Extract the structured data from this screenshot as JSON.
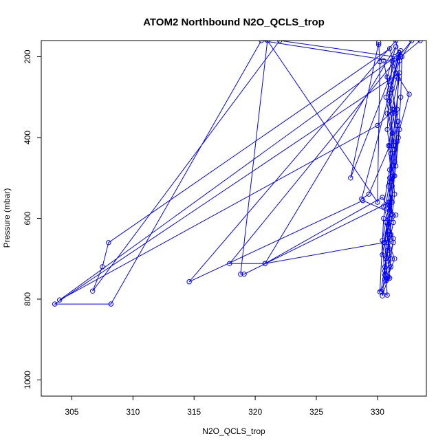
{
  "chart_data": {
    "type": "line",
    "title": "ATOM2 Northbound N2O_QCLS_trop",
    "xlabel": "N2O_QCLS_trop",
    "ylabel": "Pressure (mbar)",
    "xlim": [
      302.5,
      334
    ],
    "ylim": [
      1040,
      160
    ],
    "y_reversed": true,
    "x_ticks": [
      305,
      310,
      315,
      320,
      325,
      330
    ],
    "y_ticks": [
      200,
      400,
      600,
      800,
      1000
    ],
    "grid": false,
    "color": "#0000ff",
    "series": [
      {
        "points": [
          [
            330.5,
            210
          ],
          [
            331.0,
            290
          ],
          [
            330.8,
            380
          ],
          [
            331.2,
            470
          ],
          [
            330.9,
            560
          ],
          [
            331.1,
            640
          ],
          [
            330.6,
            720
          ],
          [
            330.8,
            790
          ],
          [
            330.3,
            780
          ],
          [
            330.7,
            700
          ],
          [
            331.3,
            610
          ],
          [
            330.9,
            520
          ],
          [
            331.4,
            430
          ],
          [
            330.8,
            340
          ],
          [
            331.6,
            250
          ],
          [
            331.0,
            180
          ],
          [
            308.0,
            660
          ],
          [
            307.5,
            720
          ],
          [
            306.7,
            780
          ],
          [
            322.0,
            160
          ],
          [
            331.4,
            200
          ],
          [
            330.7,
            300
          ],
          [
            331.2,
            390
          ],
          [
            331.0,
            480
          ],
          [
            330.5,
            570
          ],
          [
            331.3,
            650
          ],
          [
            330.9,
            745
          ],
          [
            330.4,
            792
          ],
          [
            330.6,
            730
          ],
          [
            331.0,
            640
          ],
          [
            331.4,
            540
          ],
          [
            331.1,
            440
          ],
          [
            331.5,
            340
          ],
          [
            331.8,
            240
          ],
          [
            303.6,
            812
          ],
          [
            308.2,
            812
          ],
          [
            320.5,
            160
          ],
          [
            331.2,
            210
          ],
          [
            331.0,
            310
          ],
          [
            331.3,
            410
          ],
          [
            331.0,
            500
          ],
          [
            331.2,
            590
          ],
          [
            330.8,
            680
          ],
          [
            331.0,
            748
          ],
          [
            330.8,
            750
          ],
          [
            330.6,
            660
          ],
          [
            331.0,
            570
          ],
          [
            331.3,
            470
          ],
          [
            331.6,
            370
          ],
          [
            331.2,
            280
          ],
          [
            331.7,
            195
          ],
          [
            304.0,
            802
          ],
          [
            330.0,
            370
          ],
          [
            331.4,
            330
          ],
          [
            330.9,
            420
          ],
          [
            331.2,
            520
          ],
          [
            330.7,
            610
          ],
          [
            331.1,
            700
          ],
          [
            330.6,
            740
          ],
          [
            330.8,
            650
          ],
          [
            331.2,
            560
          ],
          [
            331.4,
            460
          ],
          [
            331.7,
            360
          ],
          [
            331.1,
            270
          ],
          [
            331.8,
            190
          ],
          [
            327.8,
            500
          ],
          [
            330.1,
            165
          ],
          [
            330.1,
            170
          ],
          [
            330.2,
            212
          ],
          [
            330.0,
            560
          ],
          [
            321.0,
            160
          ],
          [
            318.8,
            738
          ],
          [
            319.1,
            738
          ],
          [
            331.0,
            560
          ],
          [
            330.8,
            640
          ],
          [
            331.1,
            720
          ],
          [
            330.6,
            750
          ],
          [
            330.4,
            655
          ],
          [
            330.9,
            575
          ],
          [
            331.3,
            495
          ],
          [
            331.6,
            410
          ],
          [
            331.2,
            330
          ],
          [
            331.7,
            255
          ],
          [
            331.9,
            185
          ],
          [
            328.7,
            552
          ],
          [
            329.3,
            540
          ],
          [
            331.0,
            420
          ],
          [
            331.2,
            340
          ],
          [
            330.8,
            250
          ],
          [
            331.5,
            175
          ],
          [
            320.8,
            712
          ],
          [
            330.4,
            548
          ],
          [
            331.2,
            590
          ],
          [
            330.9,
            660
          ],
          [
            331.4,
            700
          ],
          [
            330.7,
            755
          ],
          [
            330.2,
            782
          ],
          [
            330.5,
            600
          ],
          [
            331.0,
            510
          ],
          [
            331.3,
            420
          ],
          [
            331.6,
            330
          ],
          [
            331.8,
            210
          ],
          [
            331.5,
            160
          ],
          [
            314.6,
            757
          ],
          [
            328.8,
            556
          ],
          [
            331.5,
            592
          ],
          [
            330.9,
            620
          ],
          [
            331.3,
            660
          ],
          [
            330.8,
            705
          ],
          [
            330.4,
            690
          ],
          [
            331.0,
            600
          ],
          [
            331.4,
            495
          ],
          [
            331.7,
            400
          ],
          [
            331.9,
            300
          ],
          [
            332.0,
            200
          ],
          [
            332.8,
            160
          ],
          [
            317.9,
            712
          ],
          [
            320.8,
            712
          ],
          [
            330.5,
            660
          ],
          [
            331.0,
            580
          ],
          [
            331.5,
            470
          ],
          [
            331.8,
            380
          ],
          [
            332.6,
            293
          ],
          [
            331.5,
            240
          ],
          [
            331.9,
            200
          ],
          [
            333.5,
            160
          ]
        ]
      }
    ]
  }
}
